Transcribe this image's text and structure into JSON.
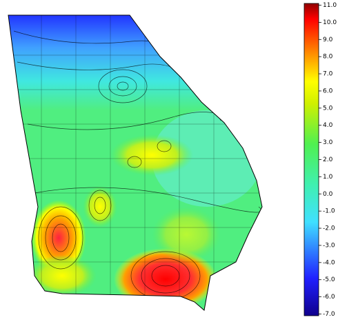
{
  "colorbar": {
    "lim": [
      -7.1,
      11.1
    ],
    "ticks": [
      {
        "value": 11,
        "label": "11.0"
      },
      {
        "value": 10,
        "label": "10.0"
      },
      {
        "value": 9,
        "label": "9.0"
      },
      {
        "value": 8,
        "label": "8.0"
      },
      {
        "value": 7,
        "label": "7.0"
      },
      {
        "value": 6,
        "label": "6.0"
      },
      {
        "value": 5,
        "label": "5.0"
      },
      {
        "value": 4,
        "label": "4.0"
      },
      {
        "value": 3,
        "label": "3.0"
      },
      {
        "value": 2,
        "label": "2.0"
      },
      {
        "value": 1,
        "label": "1.0"
      },
      {
        "value": 0,
        "label": "0.0"
      },
      {
        "value": -1,
        "label": "-1.0"
      },
      {
        "value": -2,
        "label": "-2.0"
      },
      {
        "value": -3,
        "label": "-3.0"
      },
      {
        "value": -4,
        "label": "-4.0"
      },
      {
        "value": -5,
        "label": "-5.0"
      },
      {
        "value": -6,
        "label": "-6.0"
      },
      {
        "value": -7,
        "label": "-7.0"
      }
    ]
  }
}
